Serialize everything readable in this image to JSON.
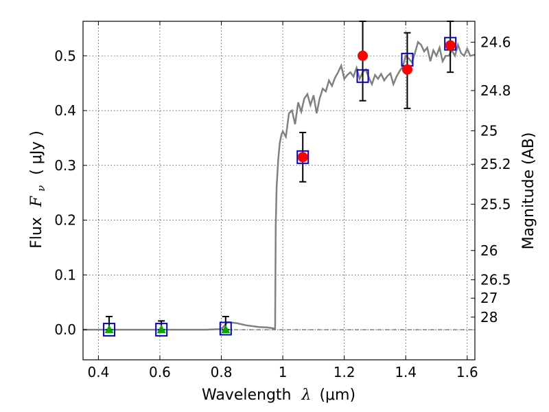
{
  "chart_data": {
    "type": "scatter",
    "xlabel": {
      "prefix": "Wavelength",
      "symbol": "λ",
      "unit": "(μm)"
    },
    "ylabel": {
      "prefix": "Flux",
      "symbol": "F",
      "subscript": "ν",
      "unit": "( μJy )"
    },
    "ylabel_right": "Magnitude (AB)",
    "xlim": [
      0.35,
      1.625
    ],
    "ylim": [
      -0.055,
      0.563
    ],
    "x_ticks": [
      0.4,
      0.6,
      0.8,
      1.0,
      1.2,
      1.4,
      1.6
    ],
    "x_tick_labels": [
      "0.4",
      "0.6",
      "0.8",
      "1",
      "1.2",
      "1.4",
      "1.6"
    ],
    "y_ticks": [
      0.0,
      0.1,
      0.2,
      0.3,
      0.4,
      0.5
    ],
    "y_tick_labels": [
      "0.0",
      "0.1",
      "0.2",
      "0.3",
      "0.4",
      "0.5"
    ],
    "right_ticks": [
      {
        "mag": 24.6,
        "label": "24.6"
      },
      {
        "mag": 24.8,
        "label": "24.8"
      },
      {
        "mag": 25.0,
        "label": "25"
      },
      {
        "mag": 25.2,
        "label": "25.2"
      },
      {
        "mag": 25.5,
        "label": "25.5"
      },
      {
        "mag": 26.0,
        "label": "26"
      },
      {
        "mag": 26.5,
        "label": "26.5"
      },
      {
        "mag": 27.0,
        "label": "27"
      },
      {
        "mag": 28.0,
        "label": "28"
      }
    ],
    "grid": true,
    "zero_line": true,
    "spectrum": {
      "color": "#808080",
      "x": [
        0.35,
        0.55,
        0.75,
        0.8,
        0.82,
        0.85,
        0.88,
        0.92,
        0.95,
        0.975,
        0.977,
        0.98,
        0.985,
        0.99,
        0.995,
        1.0,
        1.01,
        1.02,
        1.03,
        1.04,
        1.05,
        1.06,
        1.07,
        1.08,
        1.09,
        1.1,
        1.11,
        1.12,
        1.13,
        1.14,
        1.15,
        1.16,
        1.17,
        1.18,
        1.19,
        1.2,
        1.21,
        1.22,
        1.23,
        1.24,
        1.25,
        1.26,
        1.27,
        1.28,
        1.29,
        1.3,
        1.31,
        1.32,
        1.33,
        1.34,
        1.35,
        1.36,
        1.37,
        1.38,
        1.39,
        1.4,
        1.41,
        1.42,
        1.43,
        1.44,
        1.45,
        1.46,
        1.47,
        1.48,
        1.49,
        1.5,
        1.51,
        1.52,
        1.53,
        1.54,
        1.55,
        1.56,
        1.57,
        1.58,
        1.59,
        1.6,
        1.61,
        1.625
      ],
      "y": [
        0.0,
        0.0,
        0.0,
        0.001,
        0.014,
        0.012,
        0.008,
        0.005,
        0.004,
        0.002,
        0.19,
        0.26,
        0.31,
        0.34,
        0.355,
        0.362,
        0.352,
        0.395,
        0.4,
        0.375,
        0.415,
        0.398,
        0.422,
        0.43,
        0.41,
        0.428,
        0.395,
        0.422,
        0.44,
        0.435,
        0.455,
        0.445,
        0.46,
        0.47,
        0.482,
        0.458,
        0.465,
        0.47,
        0.462,
        0.478,
        0.458,
        0.47,
        0.475,
        0.46,
        0.448,
        0.465,
        0.458,
        0.467,
        0.455,
        0.463,
        0.468,
        0.448,
        0.462,
        0.472,
        0.48,
        0.5,
        0.495,
        0.488,
        0.505,
        0.525,
        0.52,
        0.508,
        0.515,
        0.49,
        0.51,
        0.5,
        0.515,
        0.49,
        0.5,
        0.5,
        0.51,
        0.5,
        0.52,
        0.505,
        0.5,
        0.513,
        0.5,
        0.502
      ]
    },
    "series": [
      {
        "marker": "square",
        "color": "#0000cc",
        "points": [
          [
            0.435,
            0.0
          ],
          [
            0.605,
            0.0
          ],
          [
            0.814,
            0.002
          ],
          [
            1.065,
            0.315
          ],
          [
            1.26,
            0.463
          ],
          [
            1.405,
            0.493
          ],
          [
            1.545,
            0.522
          ]
        ]
      },
      {
        "marker": "circle",
        "color": "#ff0000",
        "points": [
          [
            1.065,
            0.315
          ],
          [
            1.26,
            0.5
          ],
          [
            1.405,
            0.475
          ],
          [
            1.545,
            0.519
          ]
        ]
      },
      {
        "marker": "triangle",
        "color": "#00aa00",
        "points": [
          [
            0.435,
            0.0
          ],
          [
            0.605,
            0.0
          ],
          [
            0.814,
            0.0
          ]
        ]
      }
    ],
    "error_bars": [
      {
        "x": 0.435,
        "low": 0.0,
        "high": 0.024
      },
      {
        "x": 0.605,
        "low": 0.0,
        "high": 0.016
      },
      {
        "x": 0.814,
        "low": 0.0,
        "high": 0.024
      },
      {
        "x": 1.065,
        "low": 0.27,
        "high": 0.36
      },
      {
        "x": 1.26,
        "low": 0.418,
        "high": 0.563
      },
      {
        "x": 1.405,
        "low": 0.404,
        "high": 0.542
      },
      {
        "x": 1.545,
        "low": 0.47,
        "high": 0.563
      }
    ]
  }
}
